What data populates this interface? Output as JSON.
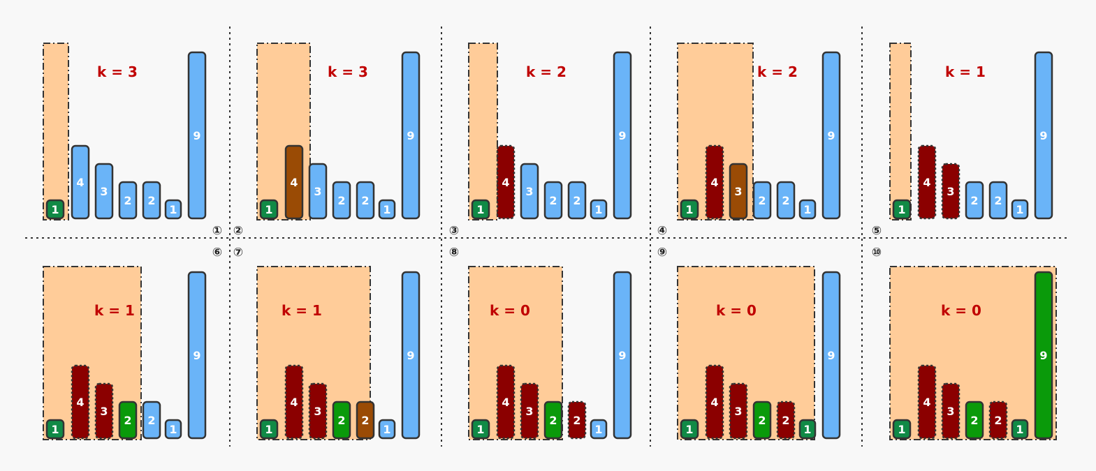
{
  "colors": {
    "unvisited": "#6ab4f8",
    "window_start": "#108a46",
    "current": "#9a4b05",
    "removed": "#8b0000",
    "kept": "#0a9a0a",
    "window_fill": "#ffcc99",
    "k_text": "#c00000",
    "divider": "#333333"
  },
  "panels": [
    {
      "step": "①",
      "k_label": "k = 3",
      "bars": [
        {
          "value": "1",
          "state": "window_start"
        },
        {
          "value": "4",
          "state": "unvisited"
        },
        {
          "value": "3",
          "state": "unvisited"
        },
        {
          "value": "2",
          "state": "unvisited"
        },
        {
          "value": "2",
          "state": "unvisited"
        },
        {
          "value": "1",
          "state": "unvisited"
        },
        {
          "value": "9",
          "state": "unvisited"
        }
      ]
    },
    {
      "step": "②",
      "k_label": "k = 3",
      "bars": [
        {
          "value": "1",
          "state": "window_start"
        },
        {
          "value": "4",
          "state": "current"
        },
        {
          "value": "3",
          "state": "unvisited"
        },
        {
          "value": "2",
          "state": "unvisited"
        },
        {
          "value": "2",
          "state": "unvisited"
        },
        {
          "value": "1",
          "state": "unvisited"
        },
        {
          "value": "9",
          "state": "unvisited"
        }
      ]
    },
    {
      "step": "③",
      "k_label": "k = 2",
      "bars": [
        {
          "value": "1",
          "state": "window_start"
        },
        {
          "value": "4",
          "state": "removed"
        },
        {
          "value": "3",
          "state": "unvisited"
        },
        {
          "value": "2",
          "state": "unvisited"
        },
        {
          "value": "2",
          "state": "unvisited"
        },
        {
          "value": "1",
          "state": "unvisited"
        },
        {
          "value": "9",
          "state": "unvisited"
        }
      ]
    },
    {
      "step": "④",
      "k_label": "k = 2",
      "bars": [
        {
          "value": "1",
          "state": "window_start"
        },
        {
          "value": "4",
          "state": "removed"
        },
        {
          "value": "3",
          "state": "current"
        },
        {
          "value": "2",
          "state": "unvisited"
        },
        {
          "value": "2",
          "state": "unvisited"
        },
        {
          "value": "1",
          "state": "unvisited"
        },
        {
          "value": "9",
          "state": "unvisited"
        }
      ]
    },
    {
      "step": "⑤",
      "k_label": "k = 1",
      "bars": [
        {
          "value": "1",
          "state": "window_start"
        },
        {
          "value": "4",
          "state": "removed"
        },
        {
          "value": "3",
          "state": "removed"
        },
        {
          "value": "2",
          "state": "unvisited"
        },
        {
          "value": "2",
          "state": "unvisited"
        },
        {
          "value": "1",
          "state": "unvisited"
        },
        {
          "value": "9",
          "state": "unvisited"
        }
      ]
    },
    {
      "step": "⑥",
      "k_label": "k = 1",
      "bars": [
        {
          "value": "1",
          "state": "window_start"
        },
        {
          "value": "4",
          "state": "removed"
        },
        {
          "value": "3",
          "state": "removed"
        },
        {
          "value": "2",
          "state": "kept"
        },
        {
          "value": "2",
          "state": "unvisited"
        },
        {
          "value": "1",
          "state": "unvisited"
        },
        {
          "value": "9",
          "state": "unvisited"
        }
      ]
    },
    {
      "step": "⑦",
      "k_label": "k = 1",
      "bars": [
        {
          "value": "1",
          "state": "window_start"
        },
        {
          "value": "4",
          "state": "removed"
        },
        {
          "value": "3",
          "state": "removed"
        },
        {
          "value": "2",
          "state": "kept"
        },
        {
          "value": "2",
          "state": "current"
        },
        {
          "value": "1",
          "state": "unvisited"
        },
        {
          "value": "9",
          "state": "unvisited"
        }
      ]
    },
    {
      "step": "⑧",
      "k_label": "k = 0",
      "bars": [
        {
          "value": "1",
          "state": "window_start"
        },
        {
          "value": "4",
          "state": "removed"
        },
        {
          "value": "3",
          "state": "removed"
        },
        {
          "value": "2",
          "state": "kept"
        },
        {
          "value": "2",
          "state": "removed"
        },
        {
          "value": "1",
          "state": "unvisited"
        },
        {
          "value": "9",
          "state": "unvisited"
        }
      ]
    },
    {
      "step": "⑨",
      "k_label": "k = 0",
      "bars": [
        {
          "value": "1",
          "state": "window_start"
        },
        {
          "value": "4",
          "state": "removed"
        },
        {
          "value": "3",
          "state": "removed"
        },
        {
          "value": "2",
          "state": "kept"
        },
        {
          "value": "2",
          "state": "removed"
        },
        {
          "value": "1",
          "state": "window_start"
        },
        {
          "value": "9",
          "state": "unvisited"
        }
      ]
    },
    {
      "step": "⑩",
      "k_label": "k = 0",
      "bars": [
        {
          "value": "1",
          "state": "window_start"
        },
        {
          "value": "4",
          "state": "removed"
        },
        {
          "value": "3",
          "state": "removed"
        },
        {
          "value": "2",
          "state": "kept"
        },
        {
          "value": "2",
          "state": "removed"
        },
        {
          "value": "1",
          "state": "window_start"
        },
        {
          "value": "9",
          "state": "kept"
        }
      ]
    }
  ]
}
